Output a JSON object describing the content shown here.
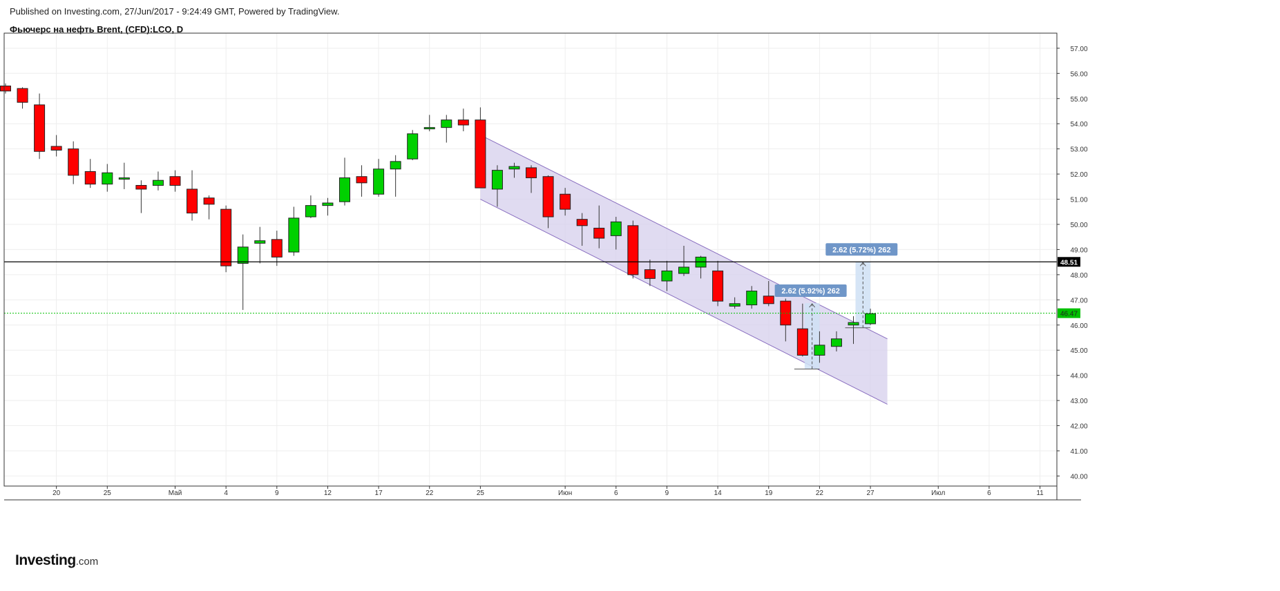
{
  "header": {
    "published": "Published on Investing.com, 27/Jun/2017 - 9:24:49 GMT, Powered by TradingView.",
    "title": "Фьючерс на нефть Brent, (CFD):LCO, D"
  },
  "logo": {
    "brand": "Investing",
    "suffix": ".com"
  },
  "colors": {
    "up": "#00d000",
    "down": "#ff0000",
    "wick": "#333333",
    "grid": "#eeeeee",
    "channel_fill": "#d6cfec",
    "channel_line": "#8a6fc0",
    "measure_fill": "#cfe0f4",
    "label_bg": "#6f96c8",
    "current_price": "#00c000",
    "ref_line": "#000000"
  },
  "chart_data": {
    "type": "candlestick",
    "title": "Фьючерс на нефть Brent, (CFD):LCO, D",
    "ylim": [
      39.6,
      57.6
    ],
    "y_ticks": [
      "57.00",
      "56.00",
      "55.00",
      "54.00",
      "53.00",
      "52.00",
      "51.00",
      "50.00",
      "49.00",
      "48.00",
      "47.00",
      "46.00",
      "45.00",
      "44.00",
      "43.00",
      "42.00",
      "41.00",
      "40.00"
    ],
    "x_ticks": [
      {
        "label": "20",
        "idx": 3
      },
      {
        "label": "25",
        "idx": 6
      },
      {
        "label": "Май",
        "idx": 10
      },
      {
        "label": "4",
        "idx": 13
      },
      {
        "label": "9",
        "idx": 16
      },
      {
        "label": "12",
        "idx": 19
      },
      {
        "label": "17",
        "idx": 22
      },
      {
        "label": "22",
        "idx": 25
      },
      {
        "label": "25",
        "idx": 28
      },
      {
        "label": "Июн",
        "idx": 33
      },
      {
        "label": "6",
        "idx": 36
      },
      {
        "label": "9",
        "idx": 39
      },
      {
        "label": "14",
        "idx": 42
      },
      {
        "label": "19",
        "idx": 45
      },
      {
        "label": "22",
        "idx": 48
      },
      {
        "label": "27",
        "idx": 51
      },
      {
        "label": "Июл",
        "idx": 55
      },
      {
        "label": "6",
        "idx": 58
      },
      {
        "label": "11",
        "idx": 61
      }
    ],
    "candles": [
      {
        "o": 55.5,
        "h": 55.6,
        "l": 55.2,
        "c": 55.3
      },
      {
        "o": 55.4,
        "h": 55.45,
        "l": 54.6,
        "c": 54.85
      },
      {
        "o": 54.75,
        "h": 55.2,
        "l": 52.6,
        "c": 52.9
      },
      {
        "o": 53.1,
        "h": 53.55,
        "l": 52.7,
        "c": 52.95
      },
      {
        "o": 53.0,
        "h": 53.3,
        "l": 51.6,
        "c": 51.95
      },
      {
        "o": 52.1,
        "h": 52.6,
        "l": 51.45,
        "c": 51.6
      },
      {
        "o": 51.6,
        "h": 52.4,
        "l": 51.3,
        "c": 52.05
      },
      {
        "o": 51.8,
        "h": 52.45,
        "l": 51.4,
        "c": 51.85
      },
      {
        "o": 51.55,
        "h": 51.75,
        "l": 50.45,
        "c": 51.4
      },
      {
        "o": 51.55,
        "h": 52.1,
        "l": 51.35,
        "c": 51.75
      },
      {
        "o": 51.9,
        "h": 52.15,
        "l": 51.3,
        "c": 51.55
      },
      {
        "o": 51.4,
        "h": 52.15,
        "l": 50.15,
        "c": 50.45
      },
      {
        "o": 51.05,
        "h": 51.15,
        "l": 50.2,
        "c": 50.8
      },
      {
        "o": 50.6,
        "h": 50.75,
        "l": 48.1,
        "c": 48.35
      },
      {
        "o": 48.45,
        "h": 49.6,
        "l": 46.6,
        "c": 49.1
      },
      {
        "o": 49.25,
        "h": 49.9,
        "l": 48.45,
        "c": 49.35
      },
      {
        "o": 49.4,
        "h": 49.75,
        "l": 48.35,
        "c": 48.7
      },
      {
        "o": 48.9,
        "h": 50.7,
        "l": 48.75,
        "c": 50.25
      },
      {
        "o": 50.3,
        "h": 51.15,
        "l": 50.25,
        "c": 50.75
      },
      {
        "o": 50.75,
        "h": 51.05,
        "l": 50.35,
        "c": 50.85
      },
      {
        "o": 50.9,
        "h": 52.65,
        "l": 50.75,
        "c": 51.85
      },
      {
        "o": 51.9,
        "h": 52.35,
        "l": 51.1,
        "c": 51.65
      },
      {
        "o": 51.2,
        "h": 52.6,
        "l": 51.1,
        "c": 52.2
      },
      {
        "o": 52.2,
        "h": 52.75,
        "l": 51.1,
        "c": 52.5
      },
      {
        "o": 52.6,
        "h": 53.75,
        "l": 52.55,
        "c": 53.6
      },
      {
        "o": 53.85,
        "h": 54.35,
        "l": 53.7,
        "c": 53.85
      },
      {
        "o": 53.85,
        "h": 54.35,
        "l": 53.25,
        "c": 54.15
      },
      {
        "o": 54.15,
        "h": 54.6,
        "l": 53.7,
        "c": 53.95
      },
      {
        "o": 54.15,
        "h": 54.65,
        "l": 51.45,
        "c": 51.45
      },
      {
        "o": 51.4,
        "h": 52.35,
        "l": 50.7,
        "c": 52.15
      },
      {
        "o": 52.2,
        "h": 52.45,
        "l": 51.85,
        "c": 52.3
      },
      {
        "o": 52.25,
        "h": 52.35,
        "l": 51.25,
        "c": 51.85
      },
      {
        "o": 51.9,
        "h": 51.95,
        "l": 49.85,
        "c": 50.3
      },
      {
        "o": 51.2,
        "h": 51.45,
        "l": 50.35,
        "c": 50.6
      },
      {
        "o": 50.2,
        "h": 50.45,
        "l": 49.15,
        "c": 49.95
      },
      {
        "o": 49.85,
        "h": 50.75,
        "l": 49.05,
        "c": 49.45
      },
      {
        "o": 49.55,
        "h": 50.3,
        "l": 49.0,
        "c": 50.1
      },
      {
        "o": 49.95,
        "h": 50.15,
        "l": 47.85,
        "c": 48.0
      },
      {
        "o": 48.2,
        "h": 48.6,
        "l": 47.55,
        "c": 47.85
      },
      {
        "o": 47.75,
        "h": 48.55,
        "l": 47.35,
        "c": 48.15
      },
      {
        "o": 48.05,
        "h": 49.15,
        "l": 47.95,
        "c": 48.3
      },
      {
        "o": 48.3,
        "h": 48.75,
        "l": 47.85,
        "c": 48.7
      },
      {
        "o": 48.15,
        "h": 48.55,
        "l": 46.75,
        "c": 46.95
      },
      {
        "o": 46.75,
        "h": 47.1,
        "l": 46.65,
        "c": 46.85
      },
      {
        "o": 46.8,
        "h": 47.55,
        "l": 46.65,
        "c": 47.35
      },
      {
        "o": 47.15,
        "h": 47.75,
        "l": 46.75,
        "c": 46.85
      },
      {
        "o": 46.95,
        "h": 47.05,
        "l": 45.35,
        "c": 46.0
      },
      {
        "o": 45.85,
        "h": 46.85,
        "l": 44.75,
        "c": 44.8
      },
      {
        "o": 44.8,
        "h": 45.75,
        "l": 44.5,
        "c": 45.2
      },
      {
        "o": 45.15,
        "h": 45.75,
        "l": 44.95,
        "c": 45.45
      },
      {
        "o": 46.0,
        "h": 46.35,
        "l": 45.25,
        "c": 46.1
      },
      {
        "o": 46.05,
        "h": 46.65,
        "l": 46.0,
        "c": 46.45
      }
    ],
    "channel": {
      "upper": {
        "from": {
          "idx": 28,
          "y": 53.55
        },
        "to": {
          "idx": 52,
          "y": 45.45
        }
      },
      "lower": {
        "from": {
          "idx": 28,
          "y": 51.0
        },
        "to": {
          "idx": 52,
          "y": 42.85
        }
      }
    },
    "reference_line": {
      "value": 48.51,
      "label": "48.51"
    },
    "current_price": {
      "value": 46.47,
      "label": "46.47"
    },
    "measures": [
      {
        "label": "2.62 (5.92%) 262",
        "from_idx": 47,
        "to_idx": 48,
        "low": 44.25,
        "high": 46.87
      },
      {
        "label": "2.62 (5.72%) 262",
        "from_idx": 50,
        "to_idx": 51,
        "low": 45.89,
        "high": 48.51
      }
    ]
  }
}
